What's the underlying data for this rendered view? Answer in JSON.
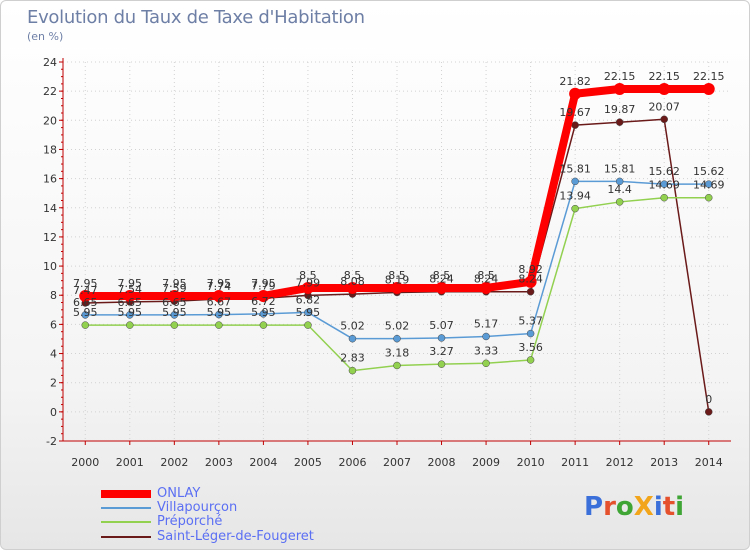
{
  "chart_data": {
    "type": "line",
    "title": "Evolution du Taux de Taxe d'Habitation",
    "subtitle": "(en %)",
    "x": [
      "2000",
      "2001",
      "2002",
      "2003",
      "2004",
      "2005",
      "2006",
      "2007",
      "2008",
      "2009",
      "2010",
      "2011",
      "2012",
      "2013",
      "2014"
    ],
    "ylim": [
      -2,
      24
    ],
    "yticks": [
      -2,
      0,
      2,
      4,
      6,
      8,
      10,
      12,
      14,
      16,
      18,
      20,
      22,
      24
    ],
    "grid": true,
    "legend_position": "bottom-left",
    "series": [
      {
        "name": "ONLAY",
        "color": "#ff0000",
        "values": [
          7.95,
          7.95,
          7.95,
          7.95,
          7.95,
          8.5,
          8.5,
          8.5,
          8.5,
          8.5,
          8.92,
          21.82,
          22.15,
          22.15,
          22.15
        ]
      },
      {
        "name": "Villapourçon",
        "color": "#5b9bd5",
        "values": [
          6.65,
          6.65,
          6.65,
          6.67,
          6.72,
          6.82,
          5.02,
          5.02,
          5.07,
          5.17,
          5.37,
          15.81,
          15.81,
          15.62,
          15.62
        ]
      },
      {
        "name": "Préporché",
        "color": "#92d050",
        "values": [
          5.95,
          5.95,
          5.95,
          5.95,
          5.95,
          5.95,
          2.83,
          3.18,
          3.27,
          3.33,
          3.56,
          13.94,
          14.4,
          14.69,
          14.69
        ]
      },
      {
        "name": "Saint-Léger-de-Fougeret",
        "color": "#6b1a1a",
        "values": [
          7.47,
          7.54,
          7.59,
          7.74,
          7.79,
          7.99,
          8.08,
          8.19,
          8.24,
          8.24,
          8.24,
          19.67,
          19.87,
          20.07,
          0
        ]
      }
    ]
  },
  "logo": {
    "text": "ProXiti"
  }
}
